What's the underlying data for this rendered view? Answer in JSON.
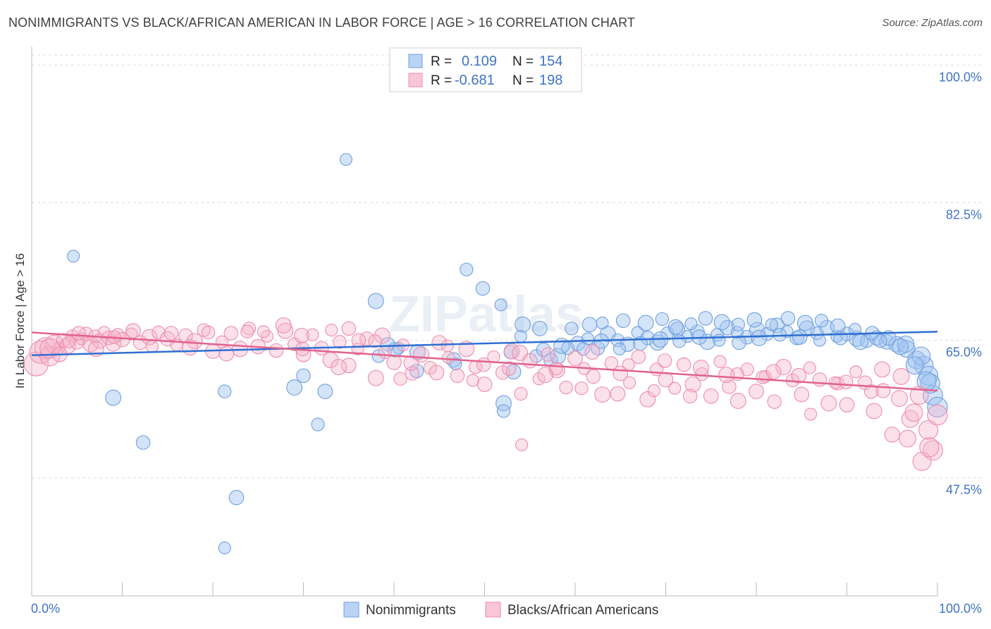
{
  "title": "NONIMMIGRANTS VS BLACK/AFRICAN AMERICAN IN LABOR FORCE | AGE > 16 CORRELATION CHART",
  "source": "Source: ZipAtlas.com",
  "watermark": "ZIPatlas",
  "legend_box": {
    "rows": [
      {
        "r_label": "R =",
        "r_value": "0.109",
        "n_label": "N =",
        "n_value": "154"
      },
      {
        "r_label": "R =",
        "r_value": "-0.681",
        "n_label": "N =",
        "n_value": "198"
      }
    ]
  },
  "chart_data": {
    "type": "scatter",
    "title": "NONIMMIGRANTS VS BLACK/AFRICAN AMERICAN IN LABOR FORCE | AGE > 16 CORRELATION CHART",
    "xlabel": "",
    "ylabel": "In Labor Force | Age > 16",
    "xlim": [
      0,
      100
    ],
    "ylim": [
      32.5,
      102
    ],
    "x_tick_labels": [
      "0.0%",
      "100.0%"
    ],
    "y_ticks": [
      47.5,
      65.0,
      82.5,
      100.0
    ],
    "y_tick_labels": [
      "47.5%",
      "65.0%",
      "82.5%",
      "100.0%"
    ],
    "grid": true,
    "legend_position": "bottom",
    "colors": {
      "Nonimmigrants": "#6f9fe0",
      "Blacks/African Americans": "#f08cab"
    },
    "series": [
      {
        "name": "Nonimmigrants",
        "r": 0.109,
        "n": 154,
        "trend": {
          "x": [
            0,
            100
          ],
          "y": [
            63.1,
            66.1
          ]
        },
        "points": [
          [
            4.6,
            75.7
          ],
          [
            12.3,
            52.0
          ],
          [
            9.0,
            57.7
          ],
          [
            21.3,
            58.5
          ],
          [
            22.6,
            45.0
          ],
          [
            21.3,
            38.6
          ],
          [
            30.0,
            60.5
          ],
          [
            29.0,
            59.0
          ],
          [
            31.6,
            54.3
          ],
          [
            32.4,
            58.5
          ],
          [
            40.5,
            64.0
          ],
          [
            42.5,
            61.1
          ],
          [
            38.0,
            70.0
          ],
          [
            38.3,
            63.0
          ],
          [
            40.1,
            63.8
          ],
          [
            34.7,
            88.0
          ],
          [
            39.3,
            64.5
          ],
          [
            42.6,
            63.5
          ],
          [
            48.0,
            74.0
          ],
          [
            46.6,
            62.5
          ],
          [
            46.8,
            62.0
          ],
          [
            49.8,
            71.6
          ],
          [
            52.1,
            57.0
          ],
          [
            52.1,
            56.0
          ],
          [
            53.2,
            61.0
          ],
          [
            51.8,
            69.5
          ],
          [
            52.9,
            63.5
          ],
          [
            54.2,
            67.0
          ],
          [
            55.7,
            63.0
          ],
          [
            56.1,
            66.5
          ],
          [
            54.0,
            65.5
          ],
          [
            57.3,
            62.5
          ],
          [
            58.1,
            63.0
          ],
          [
            59.2,
            64.0
          ],
          [
            60.3,
            64.6
          ],
          [
            61.4,
            65.2
          ],
          [
            62.5,
            64.0
          ],
          [
            63.6,
            65.8
          ],
          [
            64.7,
            65.0
          ],
          [
            65.8,
            64.5
          ],
          [
            66.9,
            66.0
          ],
          [
            68.0,
            65.3
          ],
          [
            69.1,
            64.7
          ],
          [
            70.2,
            65.9
          ],
          [
            71.3,
            66.4
          ],
          [
            72.4,
            65.5
          ],
          [
            73.5,
            66.1
          ],
          [
            74.6,
            64.8
          ],
          [
            75.7,
            65.7
          ],
          [
            76.8,
            66.6
          ],
          [
            77.9,
            66.0
          ],
          [
            79.0,
            65.4
          ],
          [
            80.1,
            66.3
          ],
          [
            81.2,
            65.8
          ],
          [
            82.3,
            66.9
          ],
          [
            83.4,
            66.1
          ],
          [
            84.5,
            65.3
          ],
          [
            85.6,
            66.5
          ],
          [
            86.7,
            65.9
          ],
          [
            87.8,
            66.6
          ],
          [
            88.9,
            65.5
          ],
          [
            90.0,
            65.8
          ],
          [
            91.1,
            65.2
          ],
          [
            92.2,
            64.9
          ],
          [
            93.3,
            65.3
          ],
          [
            94.4,
            64.8
          ],
          [
            95.5,
            64.5
          ],
          [
            96.6,
            63.9
          ],
          [
            97.7,
            62.5
          ],
          [
            98.5,
            61.8
          ],
          [
            99.0,
            60.5
          ],
          [
            99.5,
            58.0
          ],
          [
            100.0,
            56.5
          ],
          [
            59.6,
            66.5
          ],
          [
            61.6,
            67.0
          ],
          [
            63.0,
            67.2
          ],
          [
            65.3,
            67.5
          ],
          [
            67.8,
            67.2
          ],
          [
            69.6,
            67.7
          ],
          [
            71.1,
            66.7
          ],
          [
            72.8,
            67.1
          ],
          [
            74.4,
            67.8
          ],
          [
            76.2,
            67.3
          ],
          [
            78.0,
            67.0
          ],
          [
            79.8,
            67.6
          ],
          [
            81.7,
            67.0
          ],
          [
            83.5,
            67.8
          ],
          [
            85.4,
            67.2
          ],
          [
            87.2,
            67.5
          ],
          [
            89.0,
            66.8
          ],
          [
            90.9,
            66.4
          ],
          [
            92.8,
            65.9
          ],
          [
            94.6,
            65.3
          ],
          [
            96.5,
            64.5
          ],
          [
            98.2,
            63.0
          ],
          [
            99.2,
            59.5
          ],
          [
            56.5,
            63.8
          ],
          [
            58.5,
            64.3
          ],
          [
            60.9,
            63.9
          ],
          [
            62.9,
            64.9
          ],
          [
            64.9,
            63.9
          ],
          [
            67.2,
            64.6
          ],
          [
            69.4,
            65.1
          ],
          [
            71.5,
            64.9
          ],
          [
            73.7,
            65.4
          ],
          [
            75.9,
            65.0
          ],
          [
            78.1,
            64.7
          ],
          [
            80.3,
            65.3
          ],
          [
            82.6,
            65.7
          ],
          [
            84.8,
            65.4
          ],
          [
            87.0,
            65.0
          ],
          [
            89.3,
            65.3
          ],
          [
            91.5,
            64.8
          ],
          [
            93.7,
            64.9
          ],
          [
            95.9,
            64.2
          ],
          [
            97.5,
            61.8
          ],
          [
            98.8,
            59.8
          ]
        ]
      },
      {
        "name": "Blacks/African Americans",
        "r": -0.681,
        "n": 198,
        "trend": {
          "x": [
            0,
            100
          ],
          "y": [
            66.0,
            58.6
          ]
        },
        "points": [
          [
            0.5,
            62.0
          ],
          [
            1.0,
            63.5
          ],
          [
            1.5,
            64.0
          ],
          [
            2.0,
            63.0
          ],
          [
            2.5,
            64.5
          ],
          [
            3.0,
            64.0
          ],
          [
            3.5,
            65.0
          ],
          [
            4.0,
            64.3
          ],
          [
            4.5,
            65.5
          ],
          [
            5.0,
            64.8
          ],
          [
            5.5,
            65.2
          ],
          [
            6.0,
            65.8
          ],
          [
            6.5,
            64.5
          ],
          [
            7.0,
            65.5
          ],
          [
            7.5,
            64.9
          ],
          [
            8.0,
            66.0
          ],
          [
            8.5,
            65.3
          ],
          [
            9.0,
            64.6
          ],
          [
            9.5,
            65.7
          ],
          [
            10.0,
            65.1
          ],
          [
            11.0,
            65.8
          ],
          [
            12.0,
            64.7
          ],
          [
            13.0,
            65.4
          ],
          [
            14.0,
            66.0
          ],
          [
            15.0,
            65.2
          ],
          [
            16.0,
            64.4
          ],
          [
            17.0,
            65.6
          ],
          [
            18.0,
            64.9
          ],
          [
            19.0,
            66.3
          ],
          [
            20.0,
            63.6
          ],
          [
            21.0,
            64.8
          ],
          [
            22.0,
            65.9
          ],
          [
            23.0,
            63.9
          ],
          [
            24.0,
            66.5
          ],
          [
            25.0,
            64.2
          ],
          [
            26.0,
            65.5
          ],
          [
            27.0,
            63.7
          ],
          [
            28.0,
            66.2
          ],
          [
            29.0,
            64.5
          ],
          [
            30.0,
            63.2
          ],
          [
            31.0,
            65.7
          ],
          [
            32.0,
            64.0
          ],
          [
            33.0,
            62.5
          ],
          [
            34.0,
            64.8
          ],
          [
            35.0,
            61.8
          ],
          [
            36.0,
            63.9
          ],
          [
            37.0,
            65.2
          ],
          [
            38.0,
            60.2
          ],
          [
            39.0,
            63.5
          ],
          [
            40.0,
            62.2
          ],
          [
            41.0,
            64.4
          ],
          [
            42.0,
            60.8
          ],
          [
            43.0,
            63.2
          ],
          [
            44.0,
            61.5
          ],
          [
            45.0,
            64.7
          ],
          [
            46.0,
            62.8
          ],
          [
            47.0,
            60.5
          ],
          [
            48.0,
            63.9
          ],
          [
            49.0,
            61.6
          ],
          [
            50.0,
            59.4
          ],
          [
            51.0,
            62.9
          ],
          [
            52.0,
            60.9
          ],
          [
            53.0,
            63.6
          ],
          [
            54.0,
            58.2
          ],
          [
            55.0,
            62.4
          ],
          [
            56.0,
            60.1
          ],
          [
            57.0,
            63.2
          ],
          [
            58.0,
            61.2
          ],
          [
            59.0,
            59.0
          ],
          [
            60.0,
            62.7
          ],
          [
            61.0,
            61.4
          ],
          [
            62.0,
            60.4
          ],
          [
            63.0,
            58.1
          ],
          [
            64.0,
            62.1
          ],
          [
            65.0,
            60.8
          ],
          [
            66.0,
            59.6
          ],
          [
            67.0,
            62.9
          ],
          [
            68.0,
            57.5
          ],
          [
            69.0,
            61.3
          ],
          [
            70.0,
            60.0
          ],
          [
            71.0,
            58.9
          ],
          [
            72.0,
            61.9
          ],
          [
            73.0,
            59.4
          ],
          [
            74.0,
            60.7
          ],
          [
            75.0,
            57.9
          ],
          [
            76.0,
            62.3
          ],
          [
            77.0,
            59.1
          ],
          [
            78.0,
            57.3
          ],
          [
            79.0,
            61.3
          ],
          [
            80.0,
            58.5
          ],
          [
            81.0,
            60.4
          ],
          [
            82.0,
            57.2
          ],
          [
            83.0,
            61.6
          ],
          [
            84.0,
            59.9
          ],
          [
            85.0,
            58.1
          ],
          [
            86.0,
            55.6
          ],
          [
            87.0,
            60.0
          ],
          [
            88.0,
            57.0
          ],
          [
            89.0,
            59.5
          ],
          [
            90.0,
            56.8
          ],
          [
            91.0,
            61.0
          ],
          [
            92.0,
            59.6
          ],
          [
            93.0,
            56.0
          ],
          [
            94.0,
            58.6
          ],
          [
            95.0,
            53.0
          ],
          [
            96.0,
            60.4
          ],
          [
            97.0,
            55.0
          ],
          [
            98.0,
            58.0
          ],
          [
            99.0,
            53.6
          ],
          [
            99.5,
            51.0
          ],
          [
            100.0,
            55.5
          ],
          [
            96.7,
            52.5
          ],
          [
            97.4,
            55.8
          ],
          [
            98.3,
            49.6
          ],
          [
            99.1,
            51.4
          ],
          [
            54.1,
            51.7
          ],
          [
            35.0,
            66.5
          ],
          [
            27.8,
            66.9
          ],
          [
            23.8,
            66.1
          ],
          [
            29.8,
            65.6
          ],
          [
            33.1,
            66.3
          ],
          [
            36.1,
            65.0
          ],
          [
            38.7,
            65.6
          ],
          [
            2.0,
            64.0
          ],
          [
            3.1,
            63.2
          ],
          [
            4.1,
            64.8
          ],
          [
            5.2,
            65.9
          ],
          [
            7.1,
            63.9
          ],
          [
            9.1,
            65.4
          ],
          [
            11.2,
            66.2
          ],
          [
            13.3,
            64.2
          ],
          [
            15.4,
            65.9
          ],
          [
            17.5,
            64.1
          ],
          [
            19.5,
            66.0
          ],
          [
            21.5,
            63.3
          ],
          [
            25.6,
            66.1
          ],
          [
            29.9,
            63.9
          ],
          [
            33.9,
            61.6
          ],
          [
            37.9,
            64.9
          ],
          [
            41.9,
            62.1
          ],
          [
            45.9,
            64.3
          ],
          [
            49.9,
            61.9
          ],
          [
            53.9,
            63.4
          ],
          [
            57.9,
            61.4
          ],
          [
            61.9,
            63.5
          ],
          [
            65.9,
            61.9
          ],
          [
            69.9,
            62.4
          ],
          [
            73.9,
            61.5
          ],
          [
            77.9,
            60.7
          ],
          [
            81.9,
            61.0
          ],
          [
            85.9,
            61.5
          ],
          [
            89.9,
            59.7
          ],
          [
            93.9,
            61.3
          ],
          [
            40.7,
            60.1
          ],
          [
            44.7,
            60.9
          ],
          [
            48.7,
            59.9
          ],
          [
            52.7,
            61.4
          ],
          [
            56.7,
            60.6
          ],
          [
            60.7,
            58.9
          ],
          [
            64.7,
            58.2
          ],
          [
            68.7,
            58.6
          ],
          [
            72.7,
            57.9
          ],
          [
            76.7,
            60.6
          ],
          [
            80.7,
            60.3
          ],
          [
            84.7,
            60.5
          ],
          [
            88.7,
            59.6
          ],
          [
            92.7,
            58.5
          ],
          [
            95.8,
            57.6
          ]
        ]
      }
    ]
  },
  "bottom_legend": [
    {
      "label": "Nonimmigrants"
    },
    {
      "label": "Blacks/African Americans"
    }
  ]
}
